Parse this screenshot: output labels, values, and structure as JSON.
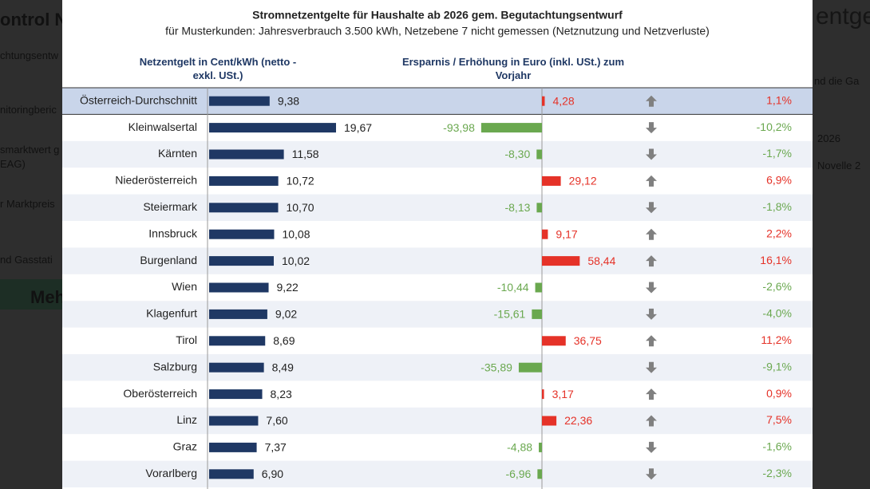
{
  "background": {
    "fragments": [
      "ontrol Ne",
      "chtungsentw",
      "nitoringberic",
      "smarktwert g",
      "EAG)",
      "r Marktpreis",
      "nd Gasstati",
      "Meh",
      "entgelte",
      "nd die Ga",
      "2026",
      "Novelle 2"
    ]
  },
  "chart_data": {
    "type": "bar-table",
    "title": "Stromnetzentgelte für Haushalte ab 2026 gem. Begutachtungsentwurf",
    "subtitle": "für Musterkunden: Jahresverbrauch 3.500 kWh, Netzebene 7 nicht gemessen (Netznutzung und Netzverluste)",
    "categories": [
      "Österreich-Durchschnitt",
      "Kleinwalsertal",
      "Kärnten",
      "Niederösterreich",
      "Steiermark",
      "Innsbruck",
      "Burgenland",
      "Wien",
      "Klagenfurt",
      "Tirol",
      "Salzburg",
      "Oberösterreich",
      "Linz",
      "Graz",
      "Vorarlberg"
    ],
    "series": [
      {
        "name": "Netzentgelt in Cent/kWh (netto - exkl. USt.)",
        "color": "#1f3864",
        "values": [
          9.38,
          19.67,
          11.58,
          10.72,
          10.7,
          10.08,
          10.02,
          9.22,
          9.02,
          8.69,
          8.49,
          8.23,
          7.6,
          7.37,
          6.9
        ],
        "value_labels": [
          "9,38",
          "19,67",
          "11,58",
          "10,72",
          "10,70",
          "10,08",
          "10,02",
          "9,22",
          "9,02",
          "8,69",
          "8,49",
          "8,23",
          "7,60",
          "7,37",
          "6,90"
        ]
      },
      {
        "name": "Ersparnis / Erhöhung in Euro (inkl. USt.) zum Vorjahr",
        "color_positive": "#e53228",
        "color_negative": "#6aa84f",
        "values": [
          4.28,
          -93.98,
          -8.3,
          29.12,
          -8.13,
          9.17,
          58.44,
          -10.44,
          -15.61,
          36.75,
          -35.89,
          3.17,
          22.36,
          -4.88,
          -6.96
        ],
        "value_labels": [
          "4,28",
          "-93,98",
          "-8,30",
          "29,12",
          "-8,13",
          "9,17",
          "58,44",
          "-10,44",
          "-15,61",
          "36,75",
          "-35,89",
          "3,17",
          "22,36",
          "-4,88",
          "-6,96"
        ]
      }
    ],
    "pct_change": {
      "values": [
        1.1,
        -10.2,
        -1.7,
        6.9,
        -1.8,
        2.2,
        16.1,
        -2.6,
        -4.0,
        11.2,
        -9.1,
        0.9,
        7.5,
        -1.6,
        -2.3
      ],
      "value_labels": [
        "1,1%",
        "-10,2%",
        "-1,7%",
        "6,9%",
        "-1,8%",
        "2,2%",
        "16,1%",
        "-2,6%",
        "-4,0%",
        "11,2%",
        "-9,1%",
        "0,9%",
        "7,5%",
        "-1,6%",
        "-2,3%"
      ]
    },
    "highlight_color": "#c9d5ea",
    "stripe_color": "#eef1f7",
    "arrow_color": "#808080"
  }
}
